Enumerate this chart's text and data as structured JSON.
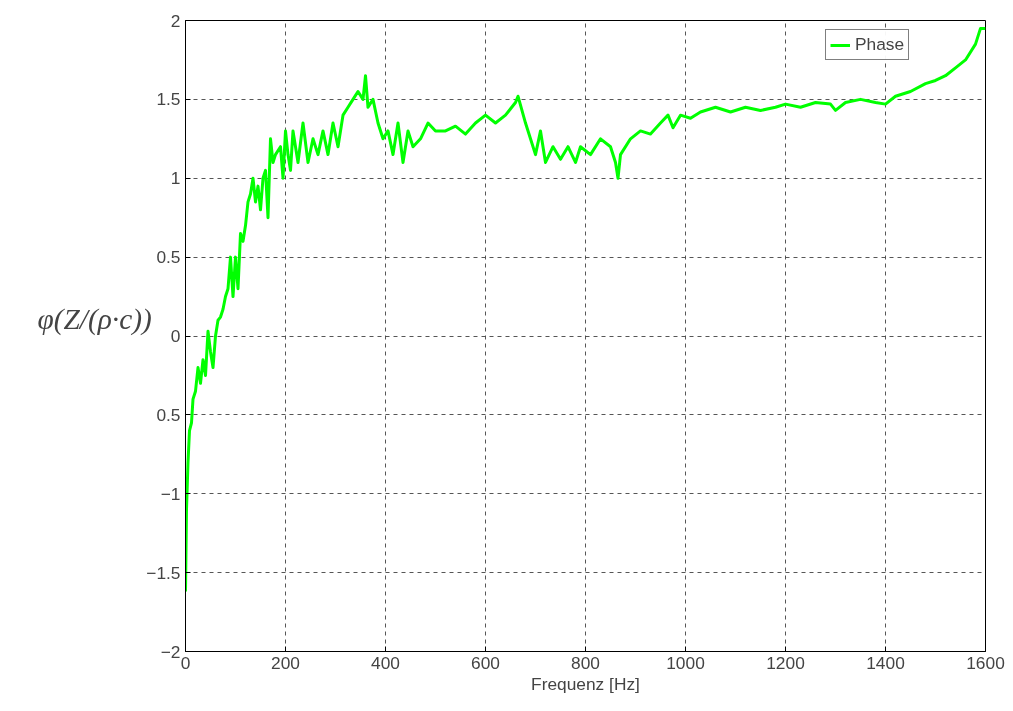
{
  "chart_data": {
    "type": "line",
    "xlabel": "Frequenz [Hz]",
    "ylabel": "φ(Z/(ρ·c))",
    "xlim": [
      0,
      1600
    ],
    "xticks": [
      0,
      200,
      400,
      600,
      800,
      1000,
      1200,
      1400,
      1600
    ],
    "ylim": [
      -2,
      2
    ],
    "yticks": [
      -2,
      -1.5,
      -1,
      {
        "value": -0.5,
        "label": "0.5"
      },
      0,
      0.5,
      1,
      1.5,
      2
    ],
    "grid": true,
    "legend": "top right",
    "line_style": "solid",
    "marker": "none",
    "x": [
      0,
      2,
      5,
      8,
      12,
      15,
      20,
      25,
      30,
      35,
      40,
      45,
      50,
      55,
      60,
      65,
      70,
      75,
      80,
      85,
      90,
      95,
      100,
      105,
      110,
      115,
      120,
      125,
      130,
      135,
      140,
      145,
      150,
      155,
      160,
      165,
      170,
      175,
      180,
      190,
      195,
      200,
      205,
      210,
      215,
      225,
      235,
      245,
      255,
      265,
      275,
      285,
      295,
      305,
      315,
      325,
      335,
      345,
      355,
      360,
      365,
      375,
      385,
      395,
      405,
      415,
      425,
      435,
      445,
      455,
      470,
      485,
      500,
      520,
      540,
      560,
      580,
      600,
      620,
      640,
      660,
      665,
      680,
      690,
      700,
      710,
      720,
      735,
      750,
      765,
      780,
      790,
      810,
      830,
      850,
      860,
      865,
      870,
      890,
      910,
      930,
      950,
      965,
      975,
      990,
      1010,
      1030,
      1060,
      1090,
      1120,
      1150,
      1180,
      1200,
      1230,
      1260,
      1290,
      1300,
      1320,
      1350,
      1380,
      1400,
      1420,
      1450,
      1480,
      1500,
      1520,
      1540,
      1560,
      1580,
      1590,
      1600
    ],
    "series": [
      {
        "name": "Phase",
        "color": "#00ff00",
        "values": [
          -1.62,
          -1.1,
          -0.8,
          -0.6,
          -0.55,
          -0.4,
          -0.35,
          -0.2,
          -0.3,
          -0.15,
          -0.25,
          0.03,
          -0.1,
          -0.2,
          0.0,
          0.1,
          0.12,
          0.17,
          0.25,
          0.3,
          0.5,
          0.25,
          0.5,
          0.3,
          0.65,
          0.6,
          0.7,
          0.85,
          0.9,
          1.0,
          0.85,
          0.95,
          0.8,
          1.0,
          1.05,
          0.75,
          1.25,
          1.1,
          1.15,
          1.2,
          1.0,
          1.3,
          1.15,
          1.05,
          1.3,
          1.1,
          1.35,
          1.1,
          1.25,
          1.15,
          1.3,
          1.15,
          1.35,
          1.2,
          1.4,
          1.45,
          1.5,
          1.55,
          1.5,
          1.65,
          1.45,
          1.5,
          1.35,
          1.25,
          1.3,
          1.15,
          1.35,
          1.1,
          1.3,
          1.2,
          1.25,
          1.35,
          1.3,
          1.3,
          1.33,
          1.28,
          1.35,
          1.4,
          1.35,
          1.4,
          1.48,
          1.52,
          1.35,
          1.25,
          1.15,
          1.3,
          1.1,
          1.2,
          1.12,
          1.2,
          1.1,
          1.2,
          1.15,
          1.25,
          1.2,
          1.1,
          1.0,
          1.15,
          1.25,
          1.3,
          1.28,
          1.35,
          1.4,
          1.32,
          1.4,
          1.38,
          1.42,
          1.45,
          1.42,
          1.45,
          1.43,
          1.45,
          1.47,
          1.45,
          1.48,
          1.47,
          1.43,
          1.48,
          1.5,
          1.48,
          1.47,
          1.52,
          1.55,
          1.6,
          1.62,
          1.65,
          1.7,
          1.75,
          1.85,
          1.95,
          1.95
        ]
      }
    ]
  }
}
